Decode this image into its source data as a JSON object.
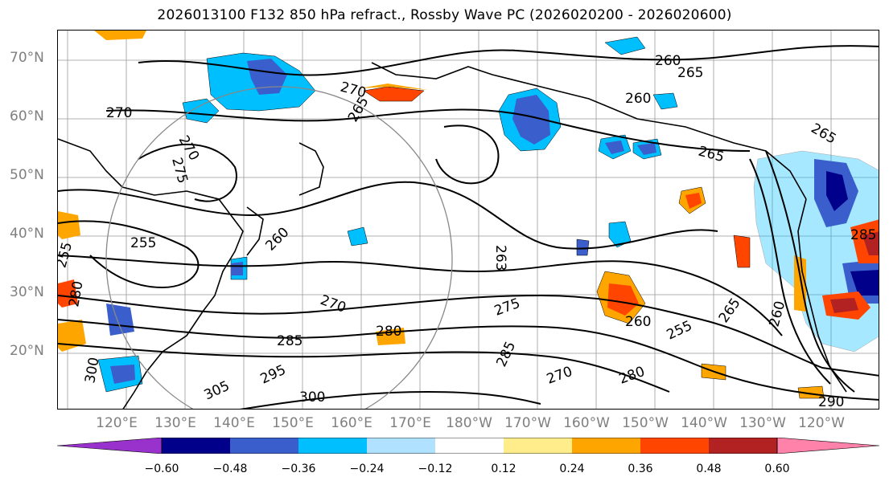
{
  "title": "2026013100 F132 850 hPa refract., Rossby Wave PC (2026020200 - 2026020600)",
  "lat_labels": [
    "70°N",
    "60°N",
    "50°N",
    "40°N",
    "30°N",
    "20°N"
  ],
  "lon_labels": [
    "120°E",
    "130°E",
    "140°E",
    "150°E",
    "160°E",
    "170°E",
    "180°W",
    "170°W",
    "160°W",
    "150°W",
    "140°W",
    "130°W",
    "120°W"
  ],
  "colorbar": {
    "ticks": [
      "−0.60",
      "−0.48",
      "−0.36",
      "−0.24",
      "−0.12",
      "0.12",
      "0.24",
      "0.36",
      "0.48",
      "0.60"
    ],
    "colors": [
      "#9932cc",
      "#00008b",
      "#3a5fcd",
      "#00bfff",
      "#b0e2ff",
      "#ffffff",
      "#ffec8b",
      "#ffa500",
      "#ff4500",
      "#b22222",
      "#ff82ab"
    ]
  },
  "contour_labels": [
    {
      "text": "260"
    },
    {
      "text": "265"
    },
    {
      "text": "270"
    },
    {
      "text": "270"
    },
    {
      "text": "260"
    },
    {
      "text": "265"
    },
    {
      "text": "265"
    },
    {
      "text": "275"
    },
    {
      "text": "270"
    },
    {
      "text": "255"
    },
    {
      "text": "265"
    },
    {
      "text": "255"
    },
    {
      "text": "260"
    },
    {
      "text": "263"
    },
    {
      "text": "270"
    },
    {
      "text": "275"
    },
    {
      "text": "260"
    },
    {
      "text": "255"
    },
    {
      "text": "265"
    },
    {
      "text": "285"
    },
    {
      "text": "280"
    },
    {
      "text": "285"
    },
    {
      "text": "270"
    },
    {
      "text": "280"
    },
    {
      "text": "305"
    },
    {
      "text": "295"
    },
    {
      "text": "300"
    },
    {
      "text": "290"
    },
    {
      "text": "260"
    },
    {
      "text": "280"
    },
    {
      "text": "300"
    },
    {
      "text": "285"
    }
  ]
}
